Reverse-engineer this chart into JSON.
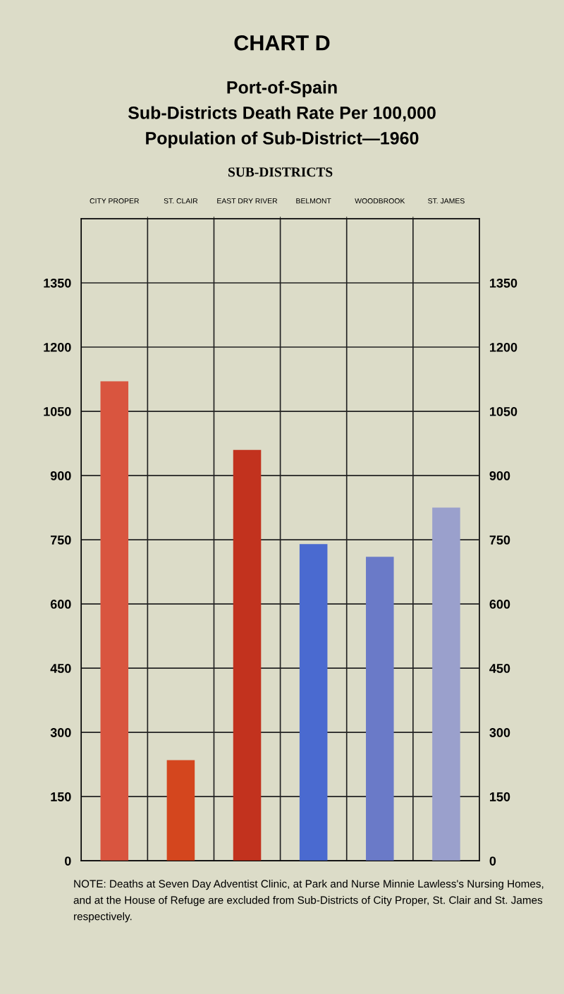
{
  "chart_data": {
    "type": "bar",
    "title": "CHART D",
    "subtitle": "Port-of-Spain\nSub-Districts Death Rate Per 100,000\nPopulation of Sub-District—1960",
    "xlabel": "SUB-DISTRICTS",
    "categories": [
      "CITY PROPER",
      "ST. CLAIR",
      "EAST DRY RIVER",
      "BELMONT",
      "WOODBROOK",
      "ST. JAMES"
    ],
    "values": [
      1120,
      235,
      960,
      740,
      710,
      825
    ],
    "colors": [
      "#d9553f",
      "#d4461e",
      "#c2321e",
      "#4a6ad0",
      "#6a7ac8",
      "#9aa0cc"
    ],
    "ylim": [
      0,
      1500
    ],
    "yticks": [
      0,
      150,
      300,
      450,
      600,
      750,
      900,
      1050,
      1200,
      1350,
      {
        "value": 1500,
        "label": null
      }
    ],
    "y2lim": [
      0,
      1500
    ],
    "y2ticks": [
      0,
      150,
      300,
      450,
      600,
      750,
      900,
      1050,
      1200,
      1350
    ],
    "grid": true,
    "annotations": [
      "NOTE: Deaths at Seven Day Adventist Clinic, at Park and Nurse Minnie Lawless's Nursing Homes, and at the House of Refuge are excluded from Sub-Districts of City Proper, St. Clair and St. James respectively."
    ]
  }
}
